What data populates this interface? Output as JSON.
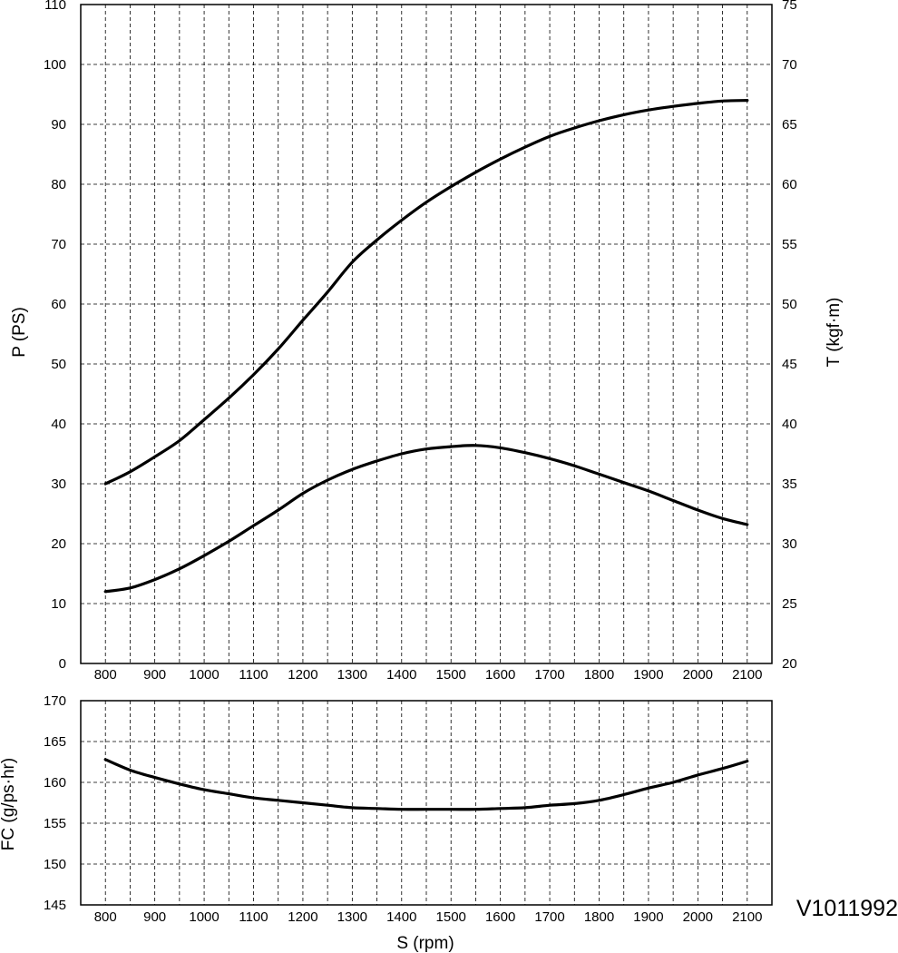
{
  "figure_code": "V1011992",
  "chart_data": [
    {
      "type": "line",
      "xlabel": "",
      "ylabel": "P (PS)",
      "y2label": "T (kgf·m)",
      "xlim": [
        750,
        2150
      ],
      "ylim": [
        0,
        110
      ],
      "y2lim": [
        20,
        75
      ],
      "grid": true,
      "x_ticks": [
        800,
        900,
        1000,
        1100,
        1200,
        1300,
        1400,
        1500,
        1600,
        1700,
        1800,
        1900,
        2000,
        2100
      ],
      "y_ticks": [
        0,
        10,
        20,
        30,
        40,
        50,
        60,
        70,
        80,
        90,
        100,
        110
      ],
      "y2_ticks": [
        20,
        25,
        30,
        35,
        40,
        45,
        50,
        55,
        60,
        65,
        70,
        75
      ],
      "series": [
        {
          "axis": "left",
          "x": [
            800,
            850,
            900,
            950,
            1000,
            1050,
            1100,
            1150,
            1200,
            1250,
            1300,
            1350,
            1400,
            1450,
            1500,
            1550,
            1600,
            1650,
            1700,
            1750,
            1800,
            1850,
            1900,
            1950,
            2000,
            2050,
            2100
          ],
          "values": [
            30,
            32,
            34.5,
            37.2,
            40.7,
            44.3,
            48.2,
            52.5,
            57.3,
            62,
            67,
            70.7,
            74,
            77,
            79.6,
            82,
            84.2,
            86.2,
            88,
            89.4,
            90.6,
            91.6,
            92.4,
            93,
            93.5,
            93.9,
            94
          ]
        },
        {
          "axis": "right",
          "x": [
            800,
            850,
            900,
            950,
            1000,
            1050,
            1100,
            1150,
            1200,
            1250,
            1300,
            1350,
            1400,
            1450,
            1500,
            1550,
            1600,
            1650,
            1700,
            1750,
            1800,
            1850,
            1900,
            1950,
            2000,
            2050,
            2100
          ],
          "values": [
            26,
            26.3,
            27,
            27.9,
            29,
            30.2,
            31.5,
            32.8,
            34.2,
            35.3,
            36.2,
            36.9,
            37.5,
            37.9,
            38.1,
            38.2,
            38,
            37.6,
            37.1,
            36.5,
            35.8,
            35.1,
            34.4,
            33.6,
            32.8,
            32.1,
            31.6
          ]
        }
      ]
    },
    {
      "type": "line",
      "xlabel": "S (rpm)",
      "ylabel": "FC (g/ps·hr)",
      "xlim": [
        750,
        2150
      ],
      "ylim": [
        145,
        170
      ],
      "grid": true,
      "x_ticks": [
        800,
        900,
        1000,
        1100,
        1200,
        1300,
        1400,
        1500,
        1600,
        1700,
        1800,
        1900,
        2000,
        2100
      ],
      "y_ticks": [
        145,
        150,
        155,
        160,
        165,
        170
      ],
      "series": [
        {
          "x": [
            800,
            850,
            900,
            950,
            1000,
            1050,
            1100,
            1150,
            1200,
            1250,
            1300,
            1350,
            1400,
            1450,
            1500,
            1550,
            1600,
            1650,
            1700,
            1750,
            1800,
            1850,
            1900,
            1950,
            2000,
            2050,
            2100
          ],
          "values": [
            162.8,
            161.5,
            160.6,
            159.8,
            159.1,
            158.6,
            158.1,
            157.8,
            157.5,
            157.2,
            156.9,
            156.8,
            156.7,
            156.7,
            156.7,
            156.7,
            156.8,
            156.9,
            157.2,
            157.4,
            157.8,
            158.5,
            159.3,
            160,
            160.9,
            161.7,
            162.6
          ]
        }
      ]
    }
  ]
}
